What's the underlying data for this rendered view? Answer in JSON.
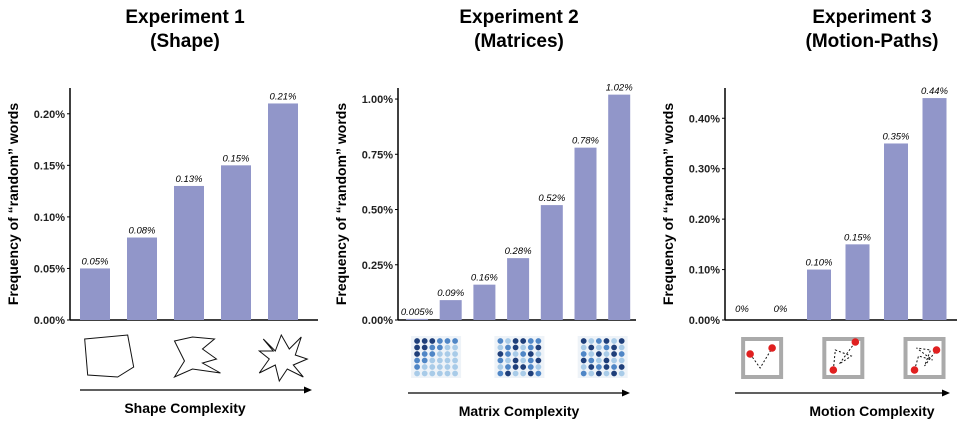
{
  "colors": {
    "bar": "#9196c9",
    "axis": "#000000",
    "matrix_dark": "#1f3f7a",
    "matrix_mid": "#4f86c6",
    "matrix_light": "#a8cbe8",
    "dot": "#e02020",
    "frame": "#aaaaaa"
  },
  "chart_data": [
    {
      "type": "bar",
      "title": [
        "Experiment 1",
        "(Shape)"
      ],
      "ylabel": "Frequency of “random” words",
      "xlabel": "Shape Complexity",
      "values": [
        0.05,
        0.08,
        0.13,
        0.15,
        0.21
      ],
      "labels": [
        "0.05%",
        "0.08%",
        "0.13%",
        "0.15%",
        "0.21%"
      ],
      "ylim": [
        0,
        0.225
      ],
      "yticks": [
        0,
        0.05,
        0.1,
        0.15,
        0.2
      ],
      "ytick_labels": [
        "0.00%",
        "0.05%",
        "0.10%",
        "0.15%",
        "0.20%"
      ],
      "stimulus": "polygon-icon",
      "grid": false
    },
    {
      "type": "bar",
      "title": [
        "Experiment 2",
        "(Matrices)"
      ],
      "ylabel": "Frequency of “random” words",
      "xlabel": "Matrix Complexity",
      "values": [
        0.005,
        0.09,
        0.16,
        0.28,
        0.52,
        0.78,
        1.02
      ],
      "labels": [
        "0.005%",
        "0.09%",
        "0.16%",
        "0.28%",
        "0.52%",
        "0.78%",
        "1.02%"
      ],
      "ylim": [
        0,
        1.05
      ],
      "yticks": [
        0,
        0.25,
        0.5,
        0.75,
        1.0
      ],
      "ytick_labels": [
        "0.00%",
        "0.25%",
        "0.50%",
        "0.75%",
        "1.00%"
      ],
      "stimulus": "matrix-icon",
      "grid": false
    },
    {
      "type": "bar",
      "title": [
        "Experiment 3",
        "(Motion-Paths)"
      ],
      "ylabel": "Frequency of “random” words",
      "xlabel": "Motion Complexity",
      "values": [
        0,
        0,
        0.1,
        0.15,
        0.35,
        0.44
      ],
      "labels": [
        "0%",
        "0%",
        "0.10%",
        "0.15%",
        "0.35%",
        "0.44%"
      ],
      "ylim": [
        0,
        0.46
      ],
      "yticks": [
        0,
        0.1,
        0.2,
        0.3,
        0.4
      ],
      "ytick_labels": [
        "0.00%",
        "0.10%",
        "0.20%",
        "0.30%",
        "0.40%"
      ],
      "stimulus": "motion-path-icon",
      "grid": false
    }
  ]
}
